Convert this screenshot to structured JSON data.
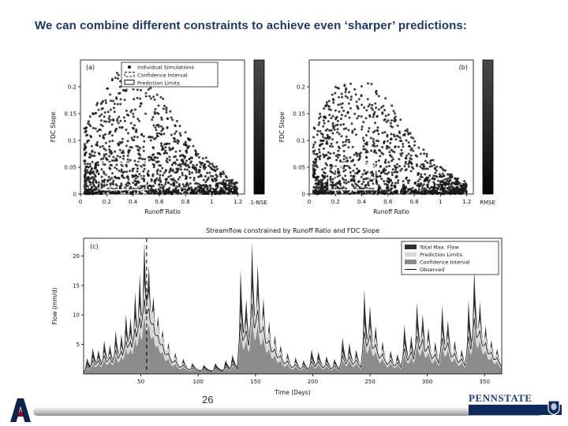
{
  "slide": {
    "title": "We can combine different constraints to achieve even ‘sharper’ predictions:",
    "page_number": "26"
  },
  "logos": {
    "arizona_letter": "A",
    "pennstate_text": "PENNSTATE"
  },
  "chart_data": [
    {
      "id": "scatter_a",
      "type": "scatter",
      "panel_label": "(a)",
      "panel_corner": "tl",
      "xlabel": "Runoff Ratio",
      "ylabel": "FDC Slope",
      "xlim": [
        0,
        1.25
      ],
      "ylim": [
        0,
        0.25
      ],
      "xticks": [
        0,
        0.2,
        0.4,
        0.6,
        0.8,
        1,
        1.2
      ],
      "yticks": [
        0,
        0.05,
        0.1,
        0.15,
        0.2
      ],
      "colorbar_label": "1-NSE",
      "colorbar_colors": [
        "#4a4a4a",
        "#050505"
      ],
      "legend": [
        "Individual Simulations",
        "Confidence Interval",
        "Prediction Limits"
      ],
      "point_color": "#161616",
      "cloud": {
        "n": 1300,
        "x_min": 0.03,
        "x_max": 1.2,
        "peak_x": 0.35,
        "peak_y": 0.23,
        "floor_y": 0.004,
        "seed": 7
      },
      "confidence_box": {
        "x0": 0.19,
        "x1": 0.46,
        "y0": 0.013,
        "y1": 0.05
      },
      "prediction_box": {
        "x0": 0.15,
        "x1": 0.5,
        "y0": 0.008,
        "y1": 0.058
      }
    },
    {
      "id": "scatter_b",
      "type": "scatter",
      "panel_label": "(b)",
      "panel_corner": "tr",
      "xlabel": "Runoff Ratio",
      "ylabel": "FDC Slope",
      "xlim": [
        0,
        1.25
      ],
      "ylim": [
        0,
        0.25
      ],
      "xticks": [
        0,
        0.2,
        0.4,
        0.6,
        0.8,
        1,
        1.2
      ],
      "yticks": [
        0,
        0.05,
        0.1,
        0.15,
        0.2
      ],
      "colorbar_label": "RMSE",
      "colorbar_colors": [
        "#4a4a4a",
        "#050505"
      ],
      "legend": null,
      "point_color": "#161616",
      "cloud": {
        "n": 1300,
        "x_min": 0.03,
        "x_max": 1.2,
        "peak_x": 0.33,
        "peak_y": 0.22,
        "floor_y": 0.004,
        "seed": 13
      },
      "confidence_box": {
        "x0": 0.19,
        "x1": 0.46,
        "y0": 0.013,
        "y1": 0.05
      },
      "prediction_box": {
        "x0": 0.15,
        "x1": 0.5,
        "y0": 0.008,
        "y1": 0.058
      }
    },
    {
      "id": "hydrograph_c",
      "type": "area",
      "panel_label": "(c)",
      "title": "Streamflow constrained by Runoff Ratio and FDC Slope",
      "xlabel": "Time (Days)",
      "ylabel": "Flow (mm/d)",
      "xlim": [
        0,
        365
      ],
      "ylim": [
        0,
        23
      ],
      "xticks": [
        50,
        100,
        150,
        200,
        250,
        300,
        350
      ],
      "yticks": [
        5,
        10,
        15,
        20
      ],
      "dashed_line_day": 55,
      "baseflow": 0.5,
      "recession_days": 3.0,
      "band_scales": {
        "prediction": 0.58,
        "confidence": 0.38,
        "observed": 0.48
      },
      "legend": [
        {
          "label": "Total Max. Flow",
          "color": "#2f2f2f",
          "line": false
        },
        {
          "label": "Prediction Limits",
          "color": "#d8d8d8",
          "line": false
        },
        {
          "label": "Confidence Interval",
          "color": "#8c8c8c",
          "line": false
        },
        {
          "label": "Observed",
          "color": "#000000",
          "line": true
        }
      ],
      "peaks": [
        [
          3,
          2.2
        ],
        [
          8,
          3.5
        ],
        [
          13,
          2.8
        ],
        [
          18,
          4.5
        ],
        [
          23,
          3.5
        ],
        [
          28,
          6
        ],
        [
          33,
          5
        ],
        [
          37,
          8
        ],
        [
          41,
          6.5
        ],
        [
          45,
          11
        ],
        [
          49,
          13
        ],
        [
          53,
          18
        ],
        [
          57,
          12
        ],
        [
          61,
          8
        ],
        [
          65,
          6
        ],
        [
          69,
          4.5
        ],
        [
          74,
          3.5
        ],
        [
          80,
          2.5
        ],
        [
          87,
          1.8
        ],
        [
          95,
          1.2
        ],
        [
          105,
          1
        ],
        [
          115,
          1.3
        ],
        [
          124,
          1.8
        ],
        [
          130,
          2.5
        ],
        [
          137,
          17
        ],
        [
          142,
          9
        ],
        [
          147,
          19.5
        ],
        [
          152,
          14
        ],
        [
          157,
          9
        ],
        [
          162,
          6
        ],
        [
          167,
          4.5
        ],
        [
          172,
          3.2
        ],
        [
          178,
          2.5
        ],
        [
          185,
          2
        ],
        [
          192,
          1.6
        ],
        [
          199,
          3.5
        ],
        [
          205,
          2.8
        ],
        [
          212,
          2.2
        ],
        [
          219,
          1.8
        ],
        [
          226,
          5.5
        ],
        [
          232,
          4
        ],
        [
          238,
          3
        ],
        [
          245,
          13.5
        ],
        [
          250,
          8.5
        ],
        [
          255,
          5.5
        ],
        [
          261,
          4
        ],
        [
          268,
          3
        ],
        [
          274,
          2.4
        ],
        [
          280,
          7.5
        ],
        [
          286,
          5
        ],
        [
          291,
          10.5
        ],
        [
          296,
          7.5
        ],
        [
          301,
          5.5
        ],
        [
          307,
          4
        ],
        [
          313,
          10.5
        ],
        [
          318,
          6.5
        ],
        [
          324,
          4
        ],
        [
          330,
          3
        ],
        [
          336,
          11.5
        ],
        [
          341,
          15
        ],
        [
          346,
          8.5
        ],
        [
          351,
          5.5
        ],
        [
          356,
          3.8
        ],
        [
          361,
          2.8
        ]
      ]
    }
  ]
}
